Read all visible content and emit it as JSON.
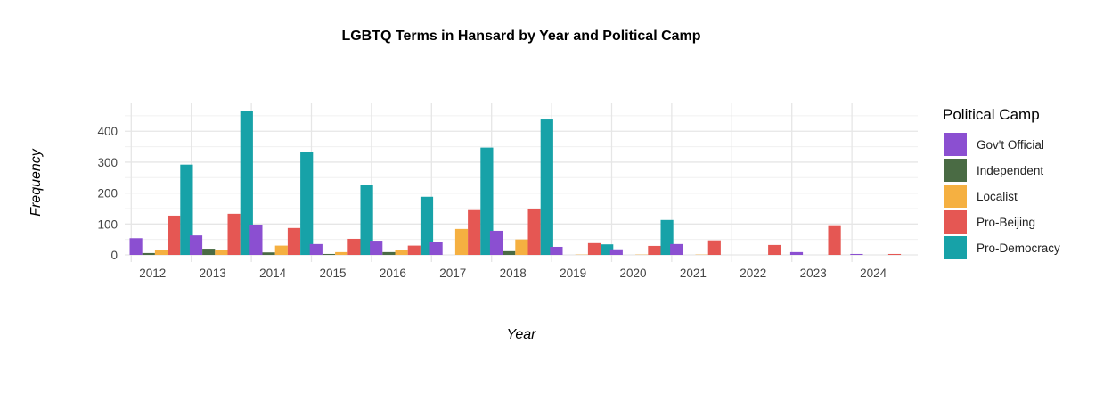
{
  "chart_data": {
    "type": "bar",
    "title": "LGBTQ Terms in Hansard by Year and Political Camp",
    "xlabel": "Year",
    "ylabel": "Frequency",
    "categories": [
      "2012",
      "2013",
      "2014",
      "2015",
      "2016",
      "2017",
      "2018",
      "2019",
      "2020",
      "2021",
      "2022",
      "2023",
      "2024"
    ],
    "y_ticks": [
      0,
      100,
      200,
      300,
      400
    ],
    "ylim": [
      0,
      490
    ],
    "grid": true,
    "legend": {
      "title": "Political Camp",
      "position": "right"
    },
    "series": [
      {
        "name": "Gov't Official",
        "color": "#8B4FD1",
        "values": [
          54,
          63,
          98,
          35,
          46,
          43,
          78,
          26,
          18,
          35,
          0,
          9,
          3
        ]
      },
      {
        "name": "Independent",
        "color": "#4A6B44",
        "values": [
          6,
          20,
          8,
          3,
          9,
          0,
          12,
          0,
          0,
          0,
          0,
          0,
          0
        ]
      },
      {
        "name": "Localist",
        "color": "#F5B041",
        "values": [
          16,
          15,
          30,
          9,
          15,
          84,
          50,
          1,
          1,
          1,
          0,
          0,
          0
        ]
      },
      {
        "name": "Pro-Beijing",
        "color": "#E55753",
        "values": [
          127,
          133,
          87,
          52,
          30,
          145,
          150,
          38,
          29,
          47,
          32,
          96,
          3
        ]
      },
      {
        "name": "Pro-Democracy",
        "color": "#17A2A8",
        "values": [
          292,
          465,
          332,
          225,
          188,
          347,
          438,
          34,
          113,
          0,
          0,
          0,
          0
        ]
      }
    ]
  }
}
